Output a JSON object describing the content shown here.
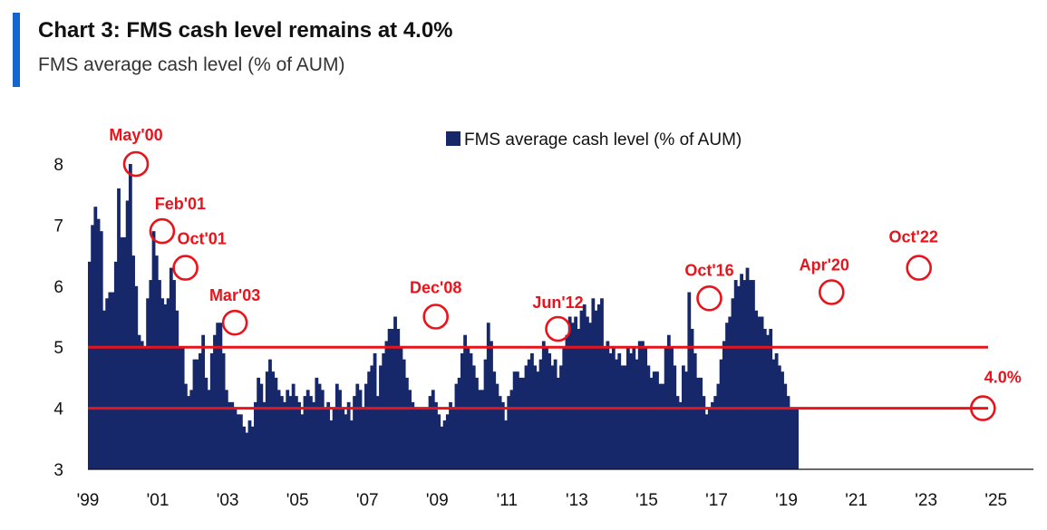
{
  "header": {
    "title": "Chart 3: FMS cash level remains at 4.0%",
    "subtitle": "FMS average cash level (% of AUM)"
  },
  "colors": {
    "bar": "#16286a",
    "annotation": "#e8141c",
    "accent": "#1464d2"
  },
  "chart_data": {
    "type": "bar",
    "title": "Chart 3: FMS cash level remains at 4.0%",
    "subtitle": "FMS average cash level (% of AUM)",
    "legend": {
      "label": "FMS average cash level (% of AUM)",
      "position": "top-center"
    },
    "ylim": [
      3,
      8.3
    ],
    "yticks": [
      3,
      4,
      5,
      6,
      7,
      8
    ],
    "xlim": [
      1999.0,
      2025.5
    ],
    "xticks": [
      {
        "label": "'99",
        "year": 1999
      },
      {
        "label": "'01",
        "year": 2001
      },
      {
        "label": "'03",
        "year": 2003
      },
      {
        "label": "'05",
        "year": 2005
      },
      {
        "label": "'07",
        "year": 2007
      },
      {
        "label": "'09",
        "year": 2009
      },
      {
        "label": "'11",
        "year": 2011
      },
      {
        "label": "'13",
        "year": 2013
      },
      {
        "label": "'15",
        "year": 2015
      },
      {
        "label": "'17",
        "year": 2017
      },
      {
        "label": "'19",
        "year": 2019
      },
      {
        "label": "'21",
        "year": 2021
      },
      {
        "label": "'23",
        "year": 2023
      },
      {
        "label": "'25",
        "year": 2025
      }
    ],
    "reference_lines": [
      5.0,
      4.0
    ],
    "series": [
      {
        "name": "FMS average cash level (% of AUM)",
        "start": "1999-01",
        "frequency": "monthly",
        "values": [
          6.4,
          7.0,
          7.3,
          7.1,
          6.9,
          5.6,
          5.8,
          5.9,
          5.9,
          6.4,
          7.6,
          6.8,
          6.8,
          7.4,
          8.0,
          6.5,
          6.0,
          5.2,
          5.1,
          5.0,
          5.8,
          6.1,
          6.9,
          6.5,
          6.1,
          5.8,
          5.7,
          5.8,
          6.3,
          6.1,
          5.6,
          5.0,
          5.0,
          4.4,
          4.2,
          4.3,
          4.8,
          4.8,
          4.9,
          5.2,
          4.5,
          4.3,
          4.9,
          5.2,
          5.4,
          5.4,
          4.9,
          4.3,
          4.1,
          4.1,
          4.0,
          3.9,
          3.9,
          3.7,
          3.6,
          3.8,
          3.7,
          4.1,
          4.5,
          4.4,
          4.1,
          4.6,
          4.8,
          4.6,
          4.5,
          4.3,
          4.2,
          4.1,
          4.3,
          4.2,
          4.4,
          4.2,
          4.1,
          3.9,
          4.2,
          4.3,
          4.2,
          4.1,
          4.5,
          4.4,
          4.3,
          4.0,
          4.1,
          3.8,
          4.0,
          4.4,
          4.3,
          4.0,
          3.9,
          4.1,
          3.8,
          4.2,
          4.4,
          4.3,
          4.0,
          4.4,
          4.6,
          4.7,
          4.9,
          4.2,
          4.7,
          4.9,
          5.1,
          5.3,
          5.3,
          5.5,
          5.3,
          5.0,
          4.8,
          4.5,
          4.3,
          4.1,
          4.0,
          4.0,
          4.0,
          4.0,
          4.0,
          4.2,
          4.3,
          4.1,
          3.9,
          3.7,
          3.8,
          3.9,
          4.1,
          4.0,
          4.4,
          4.5,
          4.9,
          5.2,
          5.0,
          4.9,
          4.7,
          4.5,
          4.3,
          4.3,
          4.8,
          5.4,
          5.1,
          4.6,
          4.4,
          4.2,
          4.1,
          3.8,
          4.2,
          4.3,
          4.6,
          4.6,
          4.5,
          4.5,
          4.7,
          4.8,
          4.9,
          4.7,
          4.6,
          4.8,
          5.1,
          5.0,
          4.9,
          4.7,
          4.8,
          4.5,
          4.7,
          5.0,
          5.2,
          5.5,
          5.4,
          5.5,
          5.3,
          5.6,
          5.7,
          5.5,
          5.4,
          5.8,
          5.6,
          5.7,
          5.8,
          5.0,
          5.1,
          4.9,
          5.0,
          4.8,
          4.9,
          4.7,
          4.7,
          5.0,
          4.9,
          5.0,
          4.8,
          5.1,
          5.1,
          5.0,
          4.7,
          4.5,
          4.6,
          4.6,
          4.4,
          4.4,
          5.0,
          5.2,
          5.0,
          4.7,
          4.2,
          4.1,
          4.7,
          4.6,
          5.9,
          5.3,
          4.9,
          4.5,
          4.5,
          4.2,
          3.9,
          4.0,
          4.1,
          4.2,
          4.4,
          4.8,
          5.1,
          5.4,
          5.5,
          5.8,
          6.1,
          6.0,
          6.2,
          6.1,
          6.3,
          6.1,
          6.1,
          5.6,
          5.5,
          5.5,
          5.3,
          5.2,
          5.3,
          4.8,
          4.9,
          4.7,
          4.6,
          4.4,
          4.2,
          4.0,
          4.0,
          4.0
        ]
      }
    ],
    "annotations": [
      {
        "label": "May'00",
        "date": "2000-05",
        "value": 8.0
      },
      {
        "label": "Feb'01",
        "date": "2001-02",
        "value": 6.9
      },
      {
        "label": "Oct'01",
        "date": "2001-10",
        "value": 6.3
      },
      {
        "label": "Mar'03",
        "date": "2003-03",
        "value": 5.4
      },
      {
        "label": "Dec'08",
        "date": "2008-12",
        "value": 5.5
      },
      {
        "label": "Jun'12",
        "date": "2012-06",
        "value": 5.3
      },
      {
        "label": "Oct'16",
        "date": "2016-10",
        "value": 5.8
      },
      {
        "label": "Apr'20",
        "date": "2020-04",
        "value": 5.9
      },
      {
        "label": "Oct'22",
        "date": "2022-10",
        "value": 6.3
      },
      {
        "label": "4.0%",
        "date": "2024-08",
        "value": 4.0
      }
    ]
  }
}
